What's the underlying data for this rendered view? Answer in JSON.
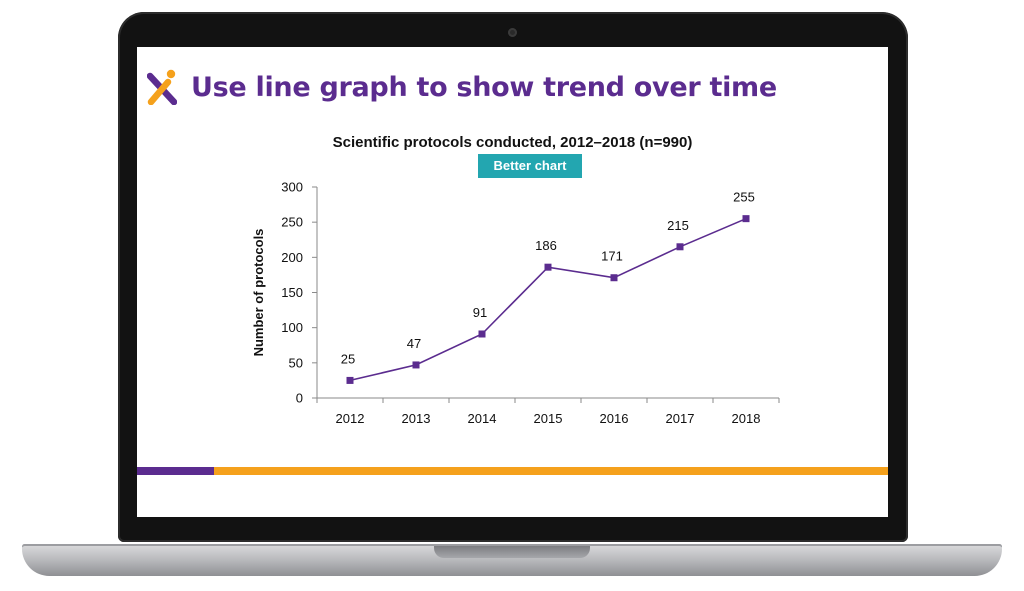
{
  "slide": {
    "title": "Use line graph to show trend over time",
    "badge": "Better chart"
  },
  "colors": {
    "title": "#5b2c8f",
    "line": "#5b2c8f",
    "badge": "#23a6b0",
    "accent_orange": "#f5a11c",
    "accent_purple": "#5b2c8f"
  },
  "logo_icon": "x-person-logo-icon",
  "chart_data": {
    "type": "line",
    "title": "Scientific protocols conducted, 2012–2018 (n=990)",
    "xlabel": "",
    "ylabel": "Number of protocols",
    "categories": [
      "2012",
      "2013",
      "2014",
      "2015",
      "2016",
      "2017",
      "2018"
    ],
    "values": [
      25,
      47,
      91,
      186,
      171,
      215,
      255
    ],
    "ylim": [
      0,
      300
    ],
    "yticks": [
      0,
      50,
      100,
      150,
      200,
      250,
      300
    ],
    "grid": false,
    "legend": "none",
    "marker": "square",
    "data_labels": true
  }
}
